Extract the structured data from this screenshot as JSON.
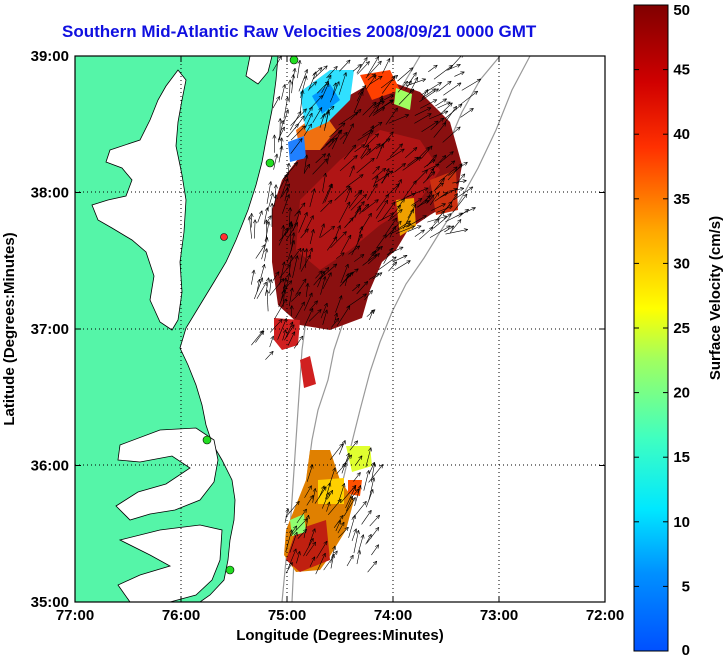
{
  "title": "Southern Mid-Atlantic Raw Velocities 2008/09/21 0000 GMT",
  "map": {
    "x_axis_label": "Longitude (Degrees:Minutes)",
    "y_axis_label": "Latitude (Degrees:Minutes)",
    "x_ticks": [
      "77:00",
      "76:00",
      "75:00",
      "74:00",
      "73:00",
      "72:00"
    ],
    "y_ticks": [
      "39:00",
      "38:00",
      "37:00",
      "36:00",
      "35:00"
    ],
    "lon_range": [
      -77,
      -72
    ],
    "lat_range": [
      35,
      39
    ],
    "grid": true,
    "land_color": "#55f5a8",
    "ocean_color": "#ffffff",
    "bathymetry_color": "#999999"
  },
  "colorbar": {
    "label": "Surface Velocity (cm/s)",
    "ticks": [
      "0",
      "5",
      "10",
      "15",
      "20",
      "25",
      "30",
      "35",
      "40",
      "45",
      "50"
    ],
    "range": [
      0,
      50
    ],
    "colormap": "jet"
  },
  "chart_data": {
    "type": "heatmap",
    "title": "Southern Mid-Atlantic Raw Velocities 2008/09/21 0000 GMT",
    "xlabel": "Longitude (Degrees:Minutes)",
    "ylabel": "Latitude (Degrees:Minutes)",
    "xlim": [
      -77,
      -72
    ],
    "ylim": [
      35,
      39
    ],
    "units": "cm/s",
    "regions": [
      {
        "lon_min": -74.9,
        "lon_max": -73.5,
        "lat_min": 37.6,
        "lat_max": 38.95,
        "typical_speed": 45
      },
      {
        "lon_min": -75.1,
        "lon_max": -74.3,
        "lat_min": 37.0,
        "lat_max": 37.8,
        "typical_speed": 48
      },
      {
        "lon_min": -74.8,
        "lon_max": -74.4,
        "lat_min": 38.4,
        "lat_max": 38.9,
        "typical_speed": 10
      },
      {
        "lon_min": -75.0,
        "lon_max": -74.3,
        "lat_min": 35.25,
        "lat_max": 36.35,
        "typical_speed": 35
      }
    ]
  }
}
